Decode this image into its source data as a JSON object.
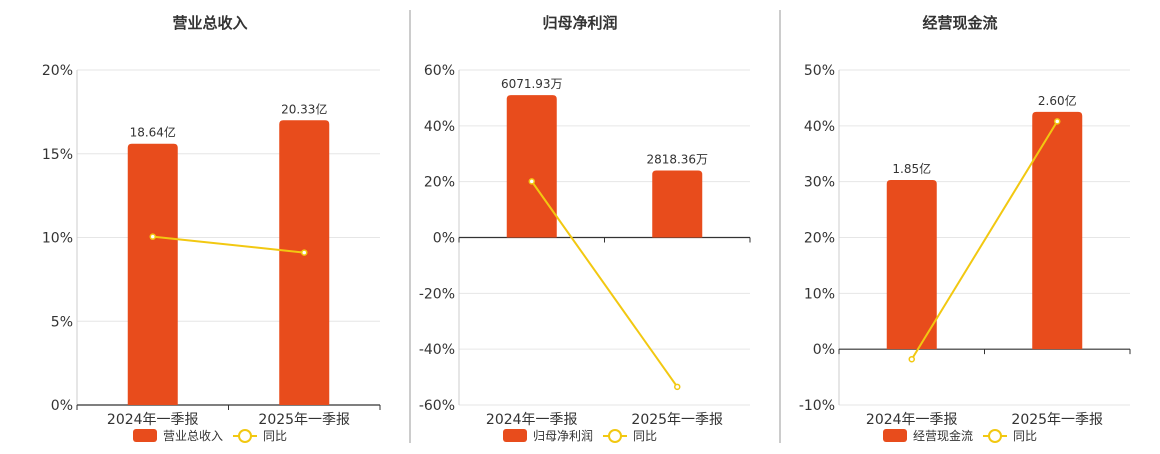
{
  "colors": {
    "bar": "#e84c1c",
    "line": "#f2c811",
    "grid": "#e6e6e6",
    "axis": "#333333",
    "text": "#333333",
    "divider": "#999999"
  },
  "legend_labels": {
    "line": "同比"
  },
  "chart_data": [
    {
      "type": "bar",
      "title": "营业总收入",
      "categories": [
        "2024年一季报",
        "2025年一季报"
      ],
      "series": [
        {
          "name": "营业总收入",
          "kind": "bar",
          "values": [
            15.6,
            17.0
          ],
          "labels": [
            "18.64亿",
            "20.33亿"
          ]
        },
        {
          "name": "同比",
          "kind": "line",
          "values": [
            10.05,
            9.1
          ]
        }
      ],
      "ylim": [
        0,
        20
      ],
      "yticks": [
        0,
        5,
        10,
        15,
        20
      ],
      "ytick_labels": [
        "0%",
        "5%",
        "10%",
        "15%",
        "20%"
      ],
      "grid": true,
      "legend": "bottom"
    },
    {
      "type": "bar",
      "title": "归母净利润",
      "categories": [
        "2024年一季报",
        "2025年一季报"
      ],
      "series": [
        {
          "name": "归母净利润",
          "kind": "bar",
          "values": [
            51,
            24
          ],
          "labels": [
            "6071.93万",
            "2818.36万"
          ]
        },
        {
          "name": "同比",
          "kind": "line",
          "values": [
            20.1,
            -53.5
          ]
        }
      ],
      "ylim": [
        -60,
        60
      ],
      "yticks": [
        -60,
        -40,
        -20,
        0,
        20,
        40,
        60
      ],
      "ytick_labels": [
        "-60%",
        "-40%",
        "-20%",
        "0%",
        "20%",
        "40%",
        "60%"
      ],
      "grid": true,
      "legend": "bottom"
    },
    {
      "type": "bar",
      "title": "经营现金流",
      "categories": [
        "2024年一季报",
        "2025年一季报"
      ],
      "series": [
        {
          "name": "经营现金流",
          "kind": "bar",
          "values": [
            30.3,
            42.5
          ],
          "labels": [
            "1.85亿",
            "2.60亿"
          ]
        },
        {
          "name": "同比",
          "kind": "line",
          "values": [
            -1.8,
            40.8
          ]
        }
      ],
      "ylim": [
        -10,
        50
      ],
      "yticks": [
        -10,
        0,
        10,
        20,
        30,
        40,
        50
      ],
      "ytick_labels": [
        "-10%",
        "0%",
        "10%",
        "20%",
        "30%",
        "40%",
        "50%"
      ],
      "grid": true,
      "legend": "bottom"
    }
  ]
}
